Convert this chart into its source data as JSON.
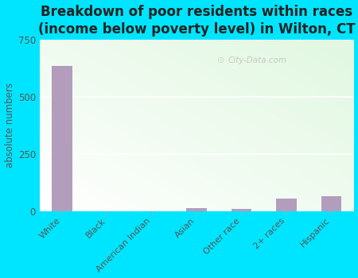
{
  "title": "Breakdown of poor residents within races\n(income below poverty level) in Wilton, CT",
  "categories": [
    "White",
    "Black",
    "American Indian",
    "Asian",
    "Other race",
    "2+ races",
    "Hispanic"
  ],
  "values": [
    635,
    0,
    0,
    13,
    10,
    55,
    65
  ],
  "bar_color": "#b39dbd",
  "ylabel": "absolute numbers",
  "ylim": [
    0,
    750
  ],
  "yticks": [
    0,
    250,
    500,
    750
  ],
  "bg_outer": "#00e5ff",
  "title_fontsize": 12,
  "title_color": "#222222",
  "watermark": "City-Data.com"
}
